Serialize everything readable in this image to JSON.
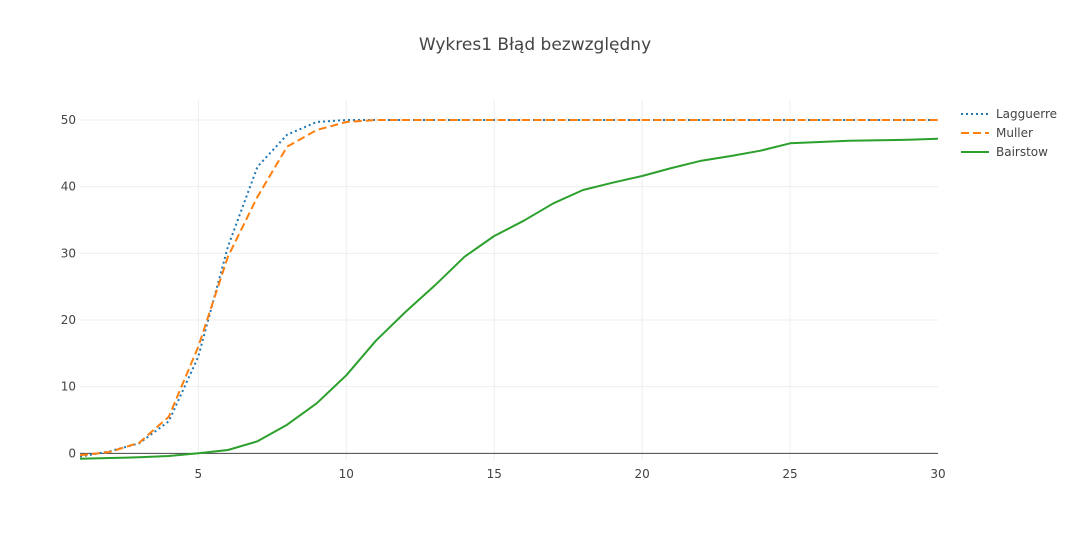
{
  "chart_data": {
    "type": "line",
    "title": "Wykres1 Błąd bezwzględny",
    "xlabel": "",
    "ylabel": "",
    "xlim": [
      1,
      30
    ],
    "ylim": [
      -1,
      53
    ],
    "x_ticks": [
      5,
      10,
      15,
      20,
      25,
      30
    ],
    "y_ticks": [
      0,
      10,
      20,
      30,
      40,
      50
    ],
    "grid": true,
    "legend_position": "top-right",
    "x": [
      1,
      2,
      3,
      4,
      5,
      6,
      7,
      8,
      9,
      10,
      11,
      12,
      13,
      14,
      15,
      16,
      17,
      18,
      19,
      20,
      21,
      22,
      23,
      24,
      25,
      26,
      27,
      28,
      29,
      30
    ],
    "series": [
      {
        "name": "Lagguerre",
        "color": "#1f77b4",
        "dash": "dotted",
        "values": [
          -0.5,
          0.3,
          1.5,
          4.8,
          14.5,
          31.0,
          43.0,
          47.8,
          49.7,
          50.0,
          50.0,
          50.0,
          50.0,
          50.0,
          50.0,
          50.0,
          50.0,
          50.0,
          50.0,
          50.0,
          50.0,
          50.0,
          50.0,
          50.0,
          50.0,
          50.0,
          50.0,
          50.0,
          50.0,
          50.0
        ]
      },
      {
        "name": "Muller",
        "color": "#ff7f0e",
        "dash": "dashed",
        "values": [
          -0.3,
          0.2,
          1.6,
          5.5,
          16.0,
          29.5,
          38.5,
          46.0,
          48.5,
          49.7,
          50.0,
          50.0,
          50.0,
          50.0,
          50.0,
          50.0,
          50.0,
          50.0,
          50.0,
          50.0,
          50.0,
          50.0,
          50.0,
          50.0,
          50.0,
          50.0,
          50.0,
          50.0,
          50.0,
          50.0
        ]
      },
      {
        "name": "Bairstow",
        "color": "#2ca02c",
        "dash": "solid",
        "values": [
          -0.8,
          -0.7,
          -0.6,
          -0.4,
          0.0,
          0.5,
          1.8,
          4.3,
          7.5,
          11.7,
          16.9,
          21.2,
          25.2,
          29.5,
          32.6,
          34.9,
          37.5,
          39.5,
          40.6,
          41.6,
          42.8,
          43.9,
          44.6,
          45.4,
          46.5,
          46.7,
          46.9,
          46.95,
          47.05,
          47.2
        ]
      }
    ]
  }
}
